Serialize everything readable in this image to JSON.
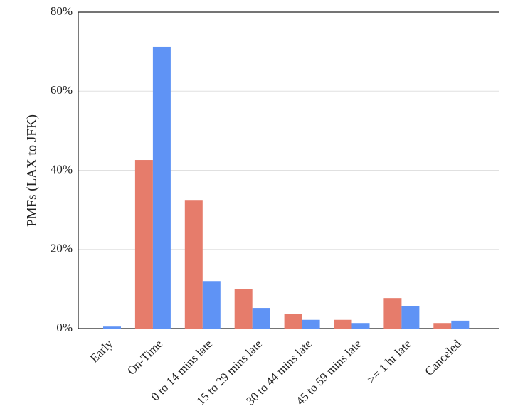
{
  "chart_data": {
    "type": "bar",
    "y_label": "PMFs (LAX to JFK)",
    "categories": [
      "Early",
      "On-Time",
      "0 to 14 mins late",
      "15 to 29 mins late",
      "30 to 44 mins late",
      "45 to 59 mins late",
      ">= 1 hr late",
      "Canceled"
    ],
    "series": [
      {
        "color": "#e67c6b",
        "values": [
          0,
          42.6,
          32.5,
          9.9,
          3.6,
          2.2,
          7.7,
          1.4
        ]
      },
      {
        "color": "#5f93f5",
        "values": [
          0.5,
          71.2,
          12.0,
          5.2,
          2.2,
          1.4,
          5.6,
          2.0
        ]
      }
    ],
    "ylim": [
      0,
      80
    ],
    "yticks": [
      {
        "value": 0,
        "label": "0%"
      },
      {
        "value": 20,
        "label": "20%"
      },
      {
        "value": 40,
        "label": "40%"
      },
      {
        "value": 60,
        "label": "60%"
      },
      {
        "value": 80,
        "label": "80%"
      }
    ],
    "grid": true
  }
}
